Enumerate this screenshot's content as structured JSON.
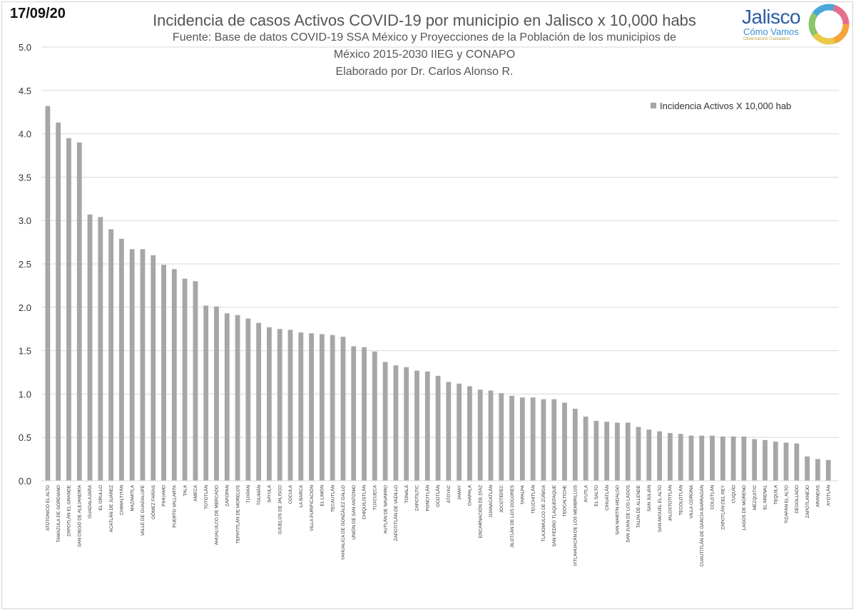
{
  "date": "17/09/20",
  "logo": {
    "name": "Jalisco",
    "subtitle": "Cómo Vamos",
    "tagline": "Observatorio Ciudadano"
  },
  "chart_data": {
    "type": "bar",
    "title": "Incidencia de casos Activos COVID-19 por municipio en Jalisco x 10,000 habs",
    "subtitle_lines": [
      "Fuente: Base de datos COVID-19 SSA México y Proyecciones de la Población de los municipios de",
      "México 2015-2030 IIEG y CONAPO",
      "Elaborado por Dr. Carlos Alonso R."
    ],
    "legend_position": "top-right",
    "grid": true,
    "ylim": [
      0,
      5
    ],
    "yticks": [
      "0.0",
      "0.5",
      "1.0",
      "1.5",
      "2.0",
      "2.5",
      "3.0",
      "3.5",
      "4.0",
      "4.5",
      "5.0"
    ],
    "bar_color": "#a6a6a6",
    "categories": [
      "ATOTONICO EL ALTO",
      "TAMAZULA DE GORDIANO",
      "ZAPOTLÁN EL GRANDE",
      "SAN DIEGO DE ALEJANDRÍA",
      "GUADALAJARA",
      "EL GRULLO",
      "ACATLÁN DE JUÁREZ",
      "CHIMALTITÁN",
      "MAZAMITLA",
      "VALLE DE GUADALUPE",
      "GÓMEZ FARÍAS",
      "PIHUAMO",
      "PUERTO VALLARTA",
      "TALA",
      "AMECA",
      "TOTOTLÁN",
      "AHUALULCO DE MERCADO",
      "ZAPOPAN",
      "TEPATITLÁN DE MORELOS",
      "TUXPAN",
      "TOLIMÁN",
      "SAYULA",
      "OJUELOS DE JALISCO",
      "COCULA",
      "LA BARCA",
      "VILLA PURIFICACIÓN",
      "EL LIMÓN",
      "TECAUTLÁN",
      "YAHUALICA DE GONZÁLEZ GALLO",
      "UNIÓN DE SAN ANTONIO",
      "CHIQUILISTLÁN",
      "TUXCUECA",
      "AUTLÁN DE NAVARRO",
      "ZAPOTITLÁN DE VADILLO",
      "TONALÁ",
      "ZAPOTILTIC",
      "PONCITLÁN",
      "OCOTLÁN",
      "ATOYAC",
      "JAMAY",
      "CHAPALA",
      "ENCARNACIÓN DE DÍAZ",
      "JUANACATLÁN",
      "JOCOTEPEC",
      "JILOTLÁN DE LOS DOLORES",
      "TAPALPA",
      "TEUCHITLÁN",
      "TLAJOMULCO DE ZÚÑIGA",
      "SAN PEDRO TLAQUEPAQUE",
      "TEOCALTICHE",
      "IXTLAHUACÁN DE LOS MEMBRILLOS",
      "AYUTLA",
      "EL SALTO",
      "CIHUATLÁN",
      "SAN MARTÍN HIDALGO",
      "SAN JUAN DE LOS LAGOS",
      "TALPA DE ALLENDE",
      "SAN JULIÁN",
      "SAN MIGUEL EL ALTO",
      "JALOSTOTITLÁN",
      "TECOLOTLÁN",
      "VILLA CORONA",
      "CUAUTITLÁN DE GARCÍA BARRAGÁN",
      "COLOTLÁN",
      "ZAPOTLÁN DEL REY",
      "CUQUÍO",
      "LAGOS DE MORENO",
      "MEZQUITIC",
      "EL ARENAL",
      "TEQUILA",
      "TIZAPÁN EL ALTO",
      "DEGOLLADO",
      "ZAPOTLANEJO",
      "ARANDAS",
      "AYOTLÁN"
    ],
    "series": [
      {
        "name": "Incidencia Activos X 10,000 hab",
        "values": [
          4.32,
          4.13,
          3.95,
          3.9,
          3.07,
          3.04,
          2.9,
          2.79,
          2.67,
          2.67,
          2.6,
          2.49,
          2.44,
          2.33,
          2.3,
          2.02,
          2.01,
          1.93,
          1.91,
          1.87,
          1.82,
          1.77,
          1.75,
          1.74,
          1.71,
          1.7,
          1.69,
          1.68,
          1.66,
          1.55,
          1.54,
          1.49,
          1.37,
          1.33,
          1.31,
          1.27,
          1.26,
          1.21,
          1.14,
          1.12,
          1.09,
          1.05,
          1.04,
          1.01,
          0.98,
          0.96,
          0.96,
          0.94,
          0.94,
          0.9,
          0.83,
          0.74,
          0.69,
          0.68,
          0.67,
          0.67,
          0.62,
          0.59,
          0.57,
          0.55,
          0.54,
          0.52,
          0.52,
          0.52,
          0.51,
          0.51,
          0.51,
          0.48,
          0.47,
          0.45,
          0.44,
          0.43,
          0.28,
          0.25,
          0.24
        ]
      }
    ]
  }
}
